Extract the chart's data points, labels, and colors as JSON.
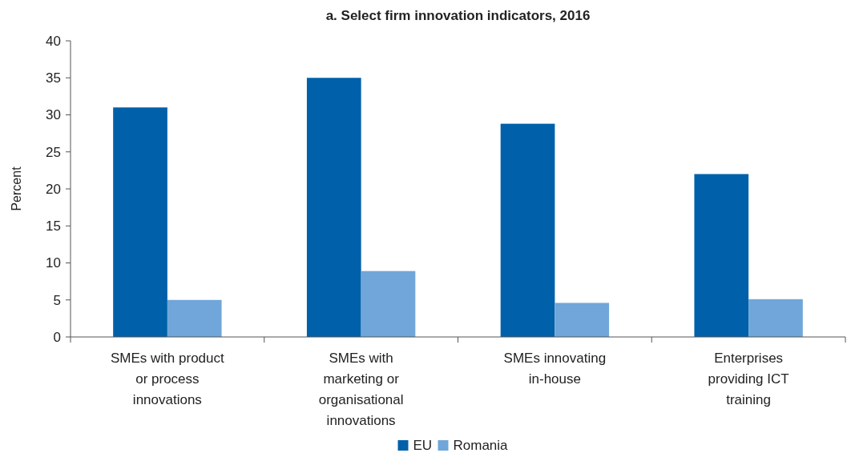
{
  "chart_data": {
    "type": "bar",
    "title": "a. Select firm innovation indicators, 2016",
    "ylabel": "Percent",
    "categories": [
      "SMEs with product or process innovations",
      "SMEs with marketing or organisational innovations",
      "SMEs innovating in-house",
      "Enterprises providing ICT training"
    ],
    "series": [
      {
        "name": "EU",
        "color": "#0060aa",
        "values": [
          31,
          35,
          28.8,
          22
        ]
      },
      {
        "name": "Romania",
        "color": "#70a6d9",
        "values": [
          5,
          8.9,
          4.6,
          5.1
        ]
      }
    ],
    "ylim": [
      0,
      40
    ],
    "yticks": [
      0,
      5,
      10,
      15,
      20,
      25,
      30,
      35,
      40
    ],
    "legend": "bottom",
    "grid": false
  }
}
